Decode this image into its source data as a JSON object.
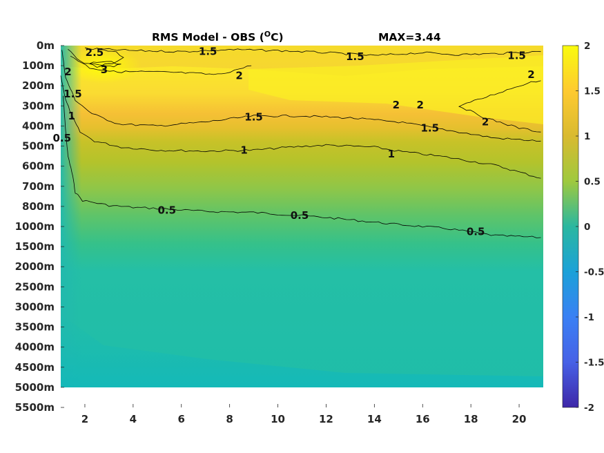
{
  "chart_data": {
    "type": "heatmap",
    "title": "RMS Model - OBS (",
    "title_unit": "O",
    "title_unit_close": "C)",
    "max_label": "MAX=3.44",
    "x_ticks": [
      "2",
      "4",
      "6",
      "8",
      "10",
      "12",
      "14",
      "16",
      "18",
      "20"
    ],
    "x_tick_values": [
      2,
      4,
      6,
      8,
      10,
      12,
      14,
      16,
      18,
      20
    ],
    "xlim": [
      1,
      21
    ],
    "y_ticks": [
      "0m",
      "100m",
      "200m",
      "300m",
      "400m",
      "500m",
      "600m",
      "700m",
      "800m",
      "1000m",
      "1500m",
      "2000m",
      "2500m",
      "3000m",
      "3500m",
      "4000m",
      "4500m",
      "5000m",
      "5500m"
    ],
    "data_bottom_level_index": 17,
    "colorbar": {
      "ticks": [
        "2",
        "1.5",
        "1",
        "0.5",
        "0",
        "-0.5",
        "-1",
        "-1.5",
        "-2"
      ],
      "tick_values": [
        2,
        1.5,
        1,
        0.5,
        0,
        -0.5,
        -1,
        -1.5,
        -2
      ],
      "range": [
        -2,
        2
      ],
      "colormap": "parula"
    },
    "contour_levels": [
      0.5,
      1,
      1.5,
      2,
      2.5,
      3
    ],
    "contour_labels": [
      {
        "text": "2.5",
        "x": 2.4,
        "level_index": 0.35
      },
      {
        "text": "3",
        "x": 2.8,
        "level_index": 1.2
      },
      {
        "text": "1.5",
        "x": 7.1,
        "level_index": 0.3
      },
      {
        "text": "2",
        "x": 8.4,
        "level_index": 1.5
      },
      {
        "text": "1.5",
        "x": 13.2,
        "level_index": 0.55
      },
      {
        "text": "1.5",
        "x": 19.9,
        "level_index": 0.5
      },
      {
        "text": "2",
        "x": 20.5,
        "level_index": 1.45
      },
      {
        "text": "2",
        "x": 14.9,
        "level_index": 2.95
      },
      {
        "text": "2",
        "x": 15.9,
        "level_index": 2.95
      },
      {
        "text": "2",
        "x": 18.6,
        "level_index": 3.8
      },
      {
        "text": "1.5",
        "x": 9.0,
        "level_index": 3.55
      },
      {
        "text": "1.5",
        "x": 16.3,
        "level_index": 4.1
      },
      {
        "text": "2",
        "x": 1.3,
        "level_index": 1.3
      },
      {
        "text": "1.5",
        "x": 1.5,
        "level_index": 2.4
      },
      {
        "text": "1",
        "x": 1.45,
        "level_index": 3.5
      },
      {
        "text": "0.5",
        "x": 1.05,
        "level_index": 4.6
      },
      {
        "text": "1",
        "x": 8.6,
        "level_index": 5.2
      },
      {
        "text": "1",
        "x": 14.7,
        "level_index": 5.4
      },
      {
        "text": "0.5",
        "x": 5.4,
        "level_index": 8.2
      },
      {
        "text": "0.5",
        "x": 10.9,
        "level_index": 8.45
      },
      {
        "text": "0.5",
        "x": 18.2,
        "level_index": 9.25
      }
    ],
    "contour_lines": [
      {
        "level": 0.5,
        "points": [
          [
            1.1,
            2.5
          ],
          [
            1.2,
            4.2
          ],
          [
            1.3,
            5.5
          ],
          [
            1.5,
            6.5
          ],
          [
            1.6,
            7.3
          ],
          [
            1.9,
            7.7
          ],
          [
            3,
            7.95
          ],
          [
            4,
            8.05
          ],
          [
            5,
            8.1
          ],
          [
            7,
            8.25
          ],
          [
            9,
            8.3
          ],
          [
            12,
            8.55
          ],
          [
            15,
            8.9
          ],
          [
            17,
            9.1
          ],
          [
            19,
            9.45
          ],
          [
            20,
            9.5
          ],
          [
            20.9,
            9.55
          ]
        ]
      },
      {
        "level": 1,
        "points": [
          [
            1.0,
            1.5
          ],
          [
            1.2,
            2.7
          ],
          [
            1.5,
            3.6
          ],
          [
            1.8,
            4.3
          ],
          [
            2.4,
            4.75
          ],
          [
            3.5,
            5.05
          ],
          [
            5,
            5.2
          ],
          [
            7,
            5.25
          ],
          [
            9,
            5.2
          ],
          [
            10.5,
            5.05
          ],
          [
            12,
            4.95
          ],
          [
            14,
            5.05
          ],
          [
            15,
            5.25
          ],
          [
            17,
            5.55
          ],
          [
            19,
            5.95
          ],
          [
            20.9,
            6.6
          ]
        ]
      },
      {
        "level": 1.5,
        "points": [
          [
            1.05,
            0.2
          ],
          [
            1.2,
            1.6
          ],
          [
            1.6,
            2.7
          ],
          [
            2.3,
            3.4
          ],
          [
            3.4,
            3.9
          ],
          [
            5,
            4.0
          ],
          [
            7,
            3.8
          ],
          [
            9,
            3.5
          ],
          [
            11,
            3.5
          ],
          [
            13,
            3.6
          ],
          [
            15,
            3.8
          ],
          [
            17,
            4.2
          ],
          [
            19,
            4.6
          ],
          [
            20.9,
            4.75
          ]
        ]
      },
      {
        "level": 1.5,
        "points": [
          [
            2.0,
            0.15
          ],
          [
            4,
            0.25
          ],
          [
            6,
            0.3
          ],
          [
            8,
            0.2
          ],
          [
            10,
            0.25
          ],
          [
            12,
            0.35
          ],
          [
            14,
            0.5
          ],
          [
            16,
            0.35
          ],
          [
            17.5,
            0.45
          ],
          [
            19,
            0.4
          ],
          [
            20.9,
            0.3
          ]
        ]
      },
      {
        "level": 2,
        "points": [
          [
            1.4,
            0.5
          ],
          [
            2.2,
            1.1
          ],
          [
            3.2,
            1.3
          ],
          [
            4.5,
            1.3
          ],
          [
            6,
            1.35
          ],
          [
            7.5,
            1.45
          ],
          [
            8.9,
            1.0
          ]
        ]
      },
      {
        "level": 2,
        "points": [
          [
            17.5,
            3.0
          ],
          [
            18.3,
            2.7
          ],
          [
            19.5,
            2.2
          ],
          [
            20.5,
            1.8
          ],
          [
            20.9,
            1.75
          ]
        ]
      },
      {
        "level": 2,
        "points": [
          [
            17.5,
            3.0
          ],
          [
            18.6,
            3.6
          ],
          [
            20,
            4.1
          ],
          [
            20.9,
            4.3
          ]
        ]
      },
      {
        "level": 2.5,
        "points": [
          [
            1.3,
            0.15
          ],
          [
            1.8,
            0.8
          ],
          [
            2.5,
            1.05
          ],
          [
            3.3,
            0.85
          ],
          [
            3.6,
            0.6
          ],
          [
            3.3,
            0.3
          ],
          [
            2.6,
            0.2
          ]
        ]
      },
      {
        "level": 3,
        "points": [
          [
            2.2,
            0.9
          ],
          [
            2.6,
            1.0
          ],
          [
            3.2,
            1.05
          ],
          [
            3.5,
            0.95
          ],
          [
            3.1,
            0.8
          ],
          [
            2.5,
            0.8
          ],
          [
            2.2,
            0.9
          ]
        ]
      }
    ]
  }
}
